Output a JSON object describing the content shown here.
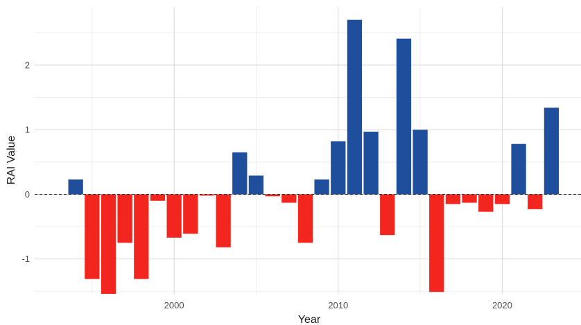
{
  "chart_data": {
    "type": "bar",
    "title": "",
    "xlabel": "Year",
    "ylabel": "RAI Value",
    "xlim": [
      1991.5,
      2024.8
    ],
    "ylim": [
      -1.55,
      2.9
    ],
    "x_ticks": [
      2000,
      2010,
      2020
    ],
    "y_ticks": [
      -1,
      0,
      1,
      2
    ],
    "grid": true,
    "reference_line": 0,
    "colors": {
      "positive": "#1f4e9c",
      "negative": "#f2261f"
    },
    "x": [
      1994,
      1995,
      1996,
      1997,
      1998,
      1999,
      2000,
      2001,
      2002,
      2003,
      2004,
      2005,
      2006,
      2007,
      2008,
      2009,
      2010,
      2011,
      2012,
      2013,
      2014,
      2015,
      2016,
      2017,
      2018,
      2019,
      2020,
      2021,
      2022,
      2023
    ],
    "values": [
      0.23,
      -1.31,
      -1.54,
      -0.75,
      -1.31,
      -0.1,
      -0.67,
      -0.61,
      -0.02,
      -0.82,
      0.65,
      0.29,
      -0.03,
      -0.13,
      -0.75,
      0.23,
      0.82,
      2.7,
      0.97,
      -0.63,
      2.41,
      1.0,
      -1.51,
      -0.15,
      -0.13,
      -0.27,
      -0.15,
      0.78,
      -0.23,
      1.34
    ]
  }
}
